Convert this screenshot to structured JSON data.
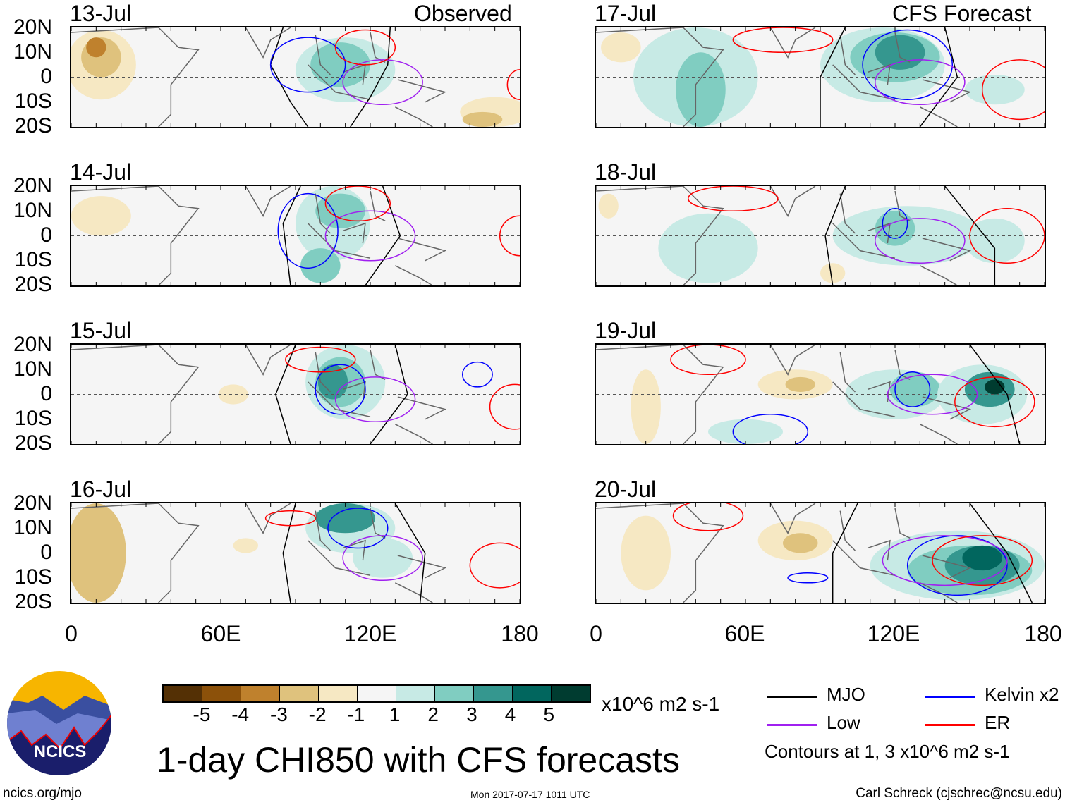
{
  "colors": {
    "levels": [
      "#543005",
      "#8c510a",
      "#bf812d",
      "#dfc27d",
      "#f6e8c3",
      "#f5f5f5",
      "#c7eae5",
      "#80cdc1",
      "#35978f",
      "#01665e",
      "#003c30"
    ],
    "MJO": "#000000",
    "Kelvin": "#0000ff",
    "Low": "#a020f0",
    "ER": "#ff0000"
  },
  "headers": {
    "left": "Observed",
    "right": "CFS Forecast"
  },
  "ylabels": [
    "20N",
    "10N",
    "0",
    "10S",
    "20S"
  ],
  "xlabels": [
    "0",
    "60E",
    "120E",
    "180"
  ],
  "colorbar": {
    "labels": [
      "-5",
      "-4",
      "-3",
      "-2",
      "-1",
      "1",
      "2",
      "3",
      "4",
      "5"
    ],
    "units": "x10^6 m2 s-1"
  },
  "legend": {
    "items": [
      {
        "label": "MJO",
        "key": "MJO"
      },
      {
        "label": "Kelvin x2",
        "key": "Kelvin"
      },
      {
        "label": "Low",
        "key": "Low"
      },
      {
        "label": "ER",
        "key": "ER"
      }
    ],
    "note": "Contours at 1, 3 x10^6 m2 s-1"
  },
  "title": "1-day CHI850 with CFS forecasts",
  "logo_text": "NCICS",
  "footer": {
    "left": "ncics.org/mjo",
    "center": "Mon 2017-07-17 1011 UTC",
    "right": "Carl Schreck (cjschrec@ncsu.edu)"
  },
  "chart_data": {
    "type": "heatmap",
    "lon_range": [
      0,
      180
    ],
    "lat_range": [
      -20,
      20
    ],
    "panels": [
      {
        "date": "13-Jul",
        "shade": [
          [
            12,
            5,
            14,
            14,
            -1
          ],
          [
            12,
            8,
            8,
            8,
            -2
          ],
          [
            10,
            12,
            4,
            4,
            -3
          ],
          [
            110,
            3,
            20,
            13,
            1
          ],
          [
            108,
            5,
            12,
            9,
            2
          ],
          [
            170,
            -14,
            14,
            6,
            -1
          ],
          [
            165,
            -17,
            8,
            3,
            -2
          ]
        ],
        "contours": [
          [
            "MJO",
            [
              [
                85,
                20
              ],
              [
                80,
                5
              ],
              [
                88,
                -10
              ],
              [
                95,
                -20
              ]
            ]
          ],
          [
            "MJO",
            [
              [
                128,
                20
              ],
              [
                127,
                5
              ],
              [
                120,
                -8
              ],
              [
                112,
                -20
              ]
            ]
          ],
          [
            "Kelvin",
            [
              [
                95,
                5,
                15,
                11
              ]
            ]
          ],
          [
            "Low",
            [
              [
                125,
                -2,
                16,
                9
              ]
            ]
          ],
          [
            "ER",
            [
              [
                118,
                12,
                12,
                7
              ]
            ]
          ],
          [
            "ER",
            [
              [
                180,
                -3,
                5,
                6
              ]
            ]
          ]
        ]
      },
      {
        "date": "14-Jul",
        "shade": [
          [
            12,
            8,
            12,
            8,
            -1
          ],
          [
            105,
            5,
            15,
            15,
            1
          ],
          [
            108,
            10,
            10,
            7,
            2
          ],
          [
            100,
            -12,
            8,
            7,
            2
          ]
        ],
        "contours": [
          [
            "MJO",
            [
              [
                92,
                20
              ],
              [
                85,
                5
              ],
              [
                88,
                -20
              ]
            ]
          ],
          [
            "MJO",
            [
              [
                125,
                20
              ],
              [
                132,
                0
              ],
              [
                118,
                -20
              ]
            ]
          ],
          [
            "Kelvin",
            [
              [
                95,
                2,
                12,
                15
              ]
            ]
          ],
          [
            "Low",
            [
              [
                120,
                0,
                18,
                10
              ]
            ]
          ],
          [
            "ER",
            [
              [
                115,
                13,
                13,
                7
              ]
            ]
          ],
          [
            "ER",
            [
              [
                180,
                0,
                8,
                8
              ]
            ]
          ]
        ]
      },
      {
        "date": "15-Jul",
        "shade": [
          [
            110,
            5,
            16,
            15,
            1
          ],
          [
            108,
            5,
            10,
            10,
            2
          ],
          [
            105,
            5,
            6,
            7,
            3
          ],
          [
            65,
            0,
            6,
            4,
            -1
          ]
        ],
        "contours": [
          [
            "MJO",
            [
              [
                90,
                20
              ],
              [
                82,
                0
              ],
              [
                88,
                -20
              ]
            ]
          ],
          [
            "MJO",
            [
              [
                130,
                20
              ],
              [
                135,
                0
              ],
              [
                120,
                -20
              ]
            ]
          ],
          [
            "Kelvin",
            [
              [
                108,
                2,
                10,
                10
              ]
            ]
          ],
          [
            "Low",
            [
              [
                122,
                -2,
                16,
                9
              ]
            ]
          ],
          [
            "ER",
            [
              [
                100,
                14,
                14,
                5
              ]
            ]
          ],
          [
            "ER",
            [
              [
                178,
                -5,
                10,
                9
              ]
            ]
          ],
          [
            "Kelvin",
            [
              [
                163,
                8,
                6,
                5
              ]
            ]
          ]
        ]
      },
      {
        "date": "16-Jul",
        "shade": [
          [
            10,
            0,
            12,
            20,
            -2
          ],
          [
            112,
            10,
            18,
            10,
            1
          ],
          [
            110,
            14,
            12,
            6,
            3
          ],
          [
            125,
            -2,
            12,
            8,
            1
          ],
          [
            70,
            3,
            5,
            3,
            -1
          ]
        ],
        "contours": [
          [
            "MJO",
            [
              [
                90,
                20
              ],
              [
                85,
                0
              ],
              [
                88,
                -20
              ]
            ]
          ],
          [
            "MJO",
            [
              [
                130,
                20
              ],
              [
                142,
                0
              ],
              [
                140,
                -20
              ]
            ]
          ],
          [
            "Kelvin",
            [
              [
                115,
                10,
                12,
                8
              ]
            ]
          ],
          [
            "Low",
            [
              [
                125,
                -2,
                16,
                9
              ]
            ]
          ],
          [
            "ER",
            [
              [
                88,
                14,
                10,
                3
              ]
            ]
          ],
          [
            "ER",
            [
              [
                172,
                -5,
                12,
                9
              ]
            ]
          ]
        ]
      },
      {
        "date": "17-Jul",
        "shade": [
          [
            40,
            0,
            25,
            20,
            1
          ],
          [
            42,
            -5,
            10,
            15,
            2
          ],
          [
            115,
            5,
            25,
            15,
            1
          ],
          [
            120,
            8,
            18,
            10,
            2
          ],
          [
            122,
            10,
            10,
            7,
            3
          ],
          [
            10,
            12,
            8,
            6,
            -1
          ],
          [
            160,
            -5,
            12,
            6,
            1
          ]
        ],
        "contours": [
          [
            "MJO",
            [
              [
                100,
                20
              ],
              [
                90,
                0
              ],
              [
                90,
                -20
              ]
            ]
          ],
          [
            "MJO",
            [
              [
                140,
                20
              ],
              [
                145,
                0
              ],
              [
                130,
                -20
              ]
            ]
          ],
          [
            "Kelvin",
            [
              [
                125,
                5,
                18,
                14
              ]
            ]
          ],
          [
            "Low",
            [
              [
                130,
                -2,
                18,
                9
              ]
            ]
          ],
          [
            "ER",
            [
              [
                75,
                15,
                20,
                5
              ]
            ]
          ],
          [
            "ER",
            [
              [
                170,
                -5,
                15,
                12
              ]
            ]
          ]
        ]
      },
      {
        "date": "18-Jul",
        "shade": [
          [
            45,
            -5,
            20,
            14,
            1
          ],
          [
            125,
            0,
            30,
            12,
            1
          ],
          [
            120,
            3,
            8,
            7,
            2
          ],
          [
            160,
            -2,
            12,
            9,
            1
          ],
          [
            95,
            -15,
            5,
            4,
            -1
          ],
          [
            5,
            12,
            4,
            5,
            -1
          ]
        ],
        "contours": [
          [
            "MJO",
            [
              [
                100,
                20
              ],
              [
                92,
                0
              ],
              [
                95,
                -20
              ]
            ]
          ],
          [
            "MJO",
            [
              [
                140,
                20
              ],
              [
                160,
                -5
              ],
              [
                160,
                -20
              ]
            ]
          ],
          [
            "Kelvin",
            [
              [
                120,
                5,
                5,
                6
              ]
            ]
          ],
          [
            "Low",
            [
              [
                130,
                -2,
                18,
                9
              ]
            ]
          ],
          [
            "ER",
            [
              [
                55,
                15,
                18,
                5
              ]
            ]
          ],
          [
            "ER",
            [
              [
                165,
                0,
                15,
                11
              ]
            ]
          ]
        ]
      },
      {
        "date": "19-Jul",
        "shade": [
          [
            120,
            0,
            20,
            10,
            1
          ],
          [
            128,
            2,
            10,
            7,
            2
          ],
          [
            155,
            0,
            18,
            12,
            1
          ],
          [
            158,
            2,
            10,
            7,
            3
          ],
          [
            160,
            3,
            4,
            3,
            5
          ],
          [
            80,
            4,
            15,
            6,
            -1
          ],
          [
            82,
            4,
            6,
            3,
            -2
          ],
          [
            20,
            -5,
            6,
            15,
            -1
          ],
          [
            60,
            -15,
            15,
            5,
            1
          ]
        ],
        "contours": [
          [
            "MJO",
            [
              [
                150,
                20
              ],
              [
                165,
                0
              ],
              [
                170,
                -20
              ]
            ]
          ],
          [
            "Kelvin",
            [
              [
                127,
                2,
                7,
                7
              ]
            ]
          ],
          [
            "Low",
            [
              [
                135,
                0,
                18,
                8
              ]
            ]
          ],
          [
            "ER",
            [
              [
                160,
                -3,
                16,
                10
              ]
            ]
          ],
          [
            "ER",
            [
              [
                45,
                14,
                15,
                6
              ]
            ]
          ],
          [
            "Kelvin",
            [
              [
                70,
                -15,
                15,
                7
              ]
            ]
          ]
        ]
      },
      {
        "date": "20-Jul",
        "shade": [
          [
            145,
            -5,
            35,
            14,
            1
          ],
          [
            150,
            -7,
            25,
            10,
            2
          ],
          [
            155,
            -5,
            15,
            8,
            3
          ],
          [
            155,
            -2,
            8,
            5,
            4
          ],
          [
            80,
            5,
            15,
            8,
            -1
          ],
          [
            82,
            4,
            7,
            4,
            -2
          ],
          [
            20,
            0,
            10,
            15,
            -1
          ]
        ],
        "contours": [
          [
            "MJO",
            [
              [
                105,
                20
              ],
              [
                95,
                0
              ],
              [
                95,
                -20
              ]
            ]
          ],
          [
            "MJO",
            [
              [
                150,
                20
              ],
              [
                165,
                0
              ],
              [
                175,
                -20
              ]
            ]
          ],
          [
            "Kelvin",
            [
              [
                145,
                -5,
                20,
                12
              ]
            ]
          ],
          [
            "Low",
            [
              [
                140,
                -3,
                25,
                10
              ]
            ]
          ],
          [
            "ER",
            [
              [
                155,
                -3,
                20,
                10
              ]
            ]
          ],
          [
            "ER",
            [
              [
                45,
                15,
                14,
                6
              ]
            ]
          ],
          [
            "Kelvin",
            [
              [
                85,
                -10,
                8,
                2
              ]
            ]
          ]
        ]
      }
    ]
  }
}
